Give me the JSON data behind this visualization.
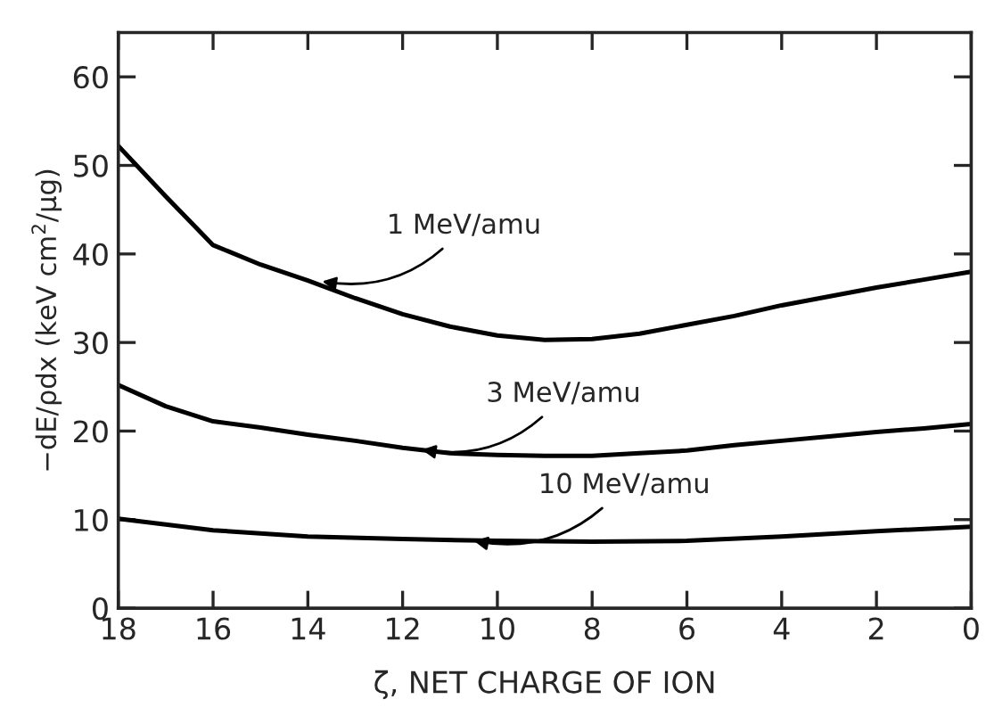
{
  "chart_data": {
    "type": "line",
    "xlabel": "ζ, NET CHARGE OF ION",
    "ylabel": "−dE/ρdx (keV cm$^{2}$/μg)",
    "xlim": [
      18,
      0
    ],
    "xticks": [
      18,
      16,
      14,
      12,
      10,
      8,
      6,
      4,
      2,
      0
    ],
    "ylim": [
      0,
      65
    ],
    "yticks": [
      0,
      10,
      20,
      30,
      40,
      50,
      60
    ],
    "grid": false,
    "marker": "none",
    "line_style": "solid",
    "series": [
      {
        "color": "#000000",
        "x": [
          18,
          17,
          16,
          15,
          14,
          13,
          12,
          11,
          10,
          9,
          8,
          7,
          6,
          5,
          4,
          3,
          2,
          1,
          0
        ],
        "values": [
          52.2,
          46.5,
          41,
          38.8,
          37,
          35,
          33.2,
          31.8,
          30.8,
          30.3,
          30.4,
          31,
          32,
          33,
          34.2,
          35.2,
          36.2,
          37.1,
          38
        ]
      },
      {
        "color": "#000000",
        "x": [
          18,
          17,
          16,
          15,
          14,
          13,
          12,
          11,
          10,
          9,
          8,
          7,
          6,
          5,
          4,
          3,
          2,
          1,
          0
        ],
        "values": [
          25.2,
          22.8,
          21.1,
          20.4,
          19.6,
          18.9,
          18.1,
          17.5,
          17.3,
          17.2,
          17.2,
          17.5,
          17.8,
          18.4,
          18.9,
          19.4,
          19.9,
          20.3,
          20.8
        ]
      },
      {
        "color": "#000000",
        "x": [
          18,
          16,
          14,
          12,
          10,
          8,
          6,
          4,
          2,
          0
        ],
        "values": [
          10.1,
          8.8,
          8.1,
          7.8,
          7.6,
          7.5,
          7.6,
          8.1,
          8.7,
          9.2
        ]
      }
    ],
    "annotations": [
      {
        "text": "1 MeV/amu",
        "x": 13.8,
        "y": 37
      },
      {
        "text": "3 MeV/amu",
        "x": 11.7,
        "y": 18
      },
      {
        "text": "10 MeV/amu",
        "x": 10.6,
        "y": 7.7
      }
    ]
  }
}
